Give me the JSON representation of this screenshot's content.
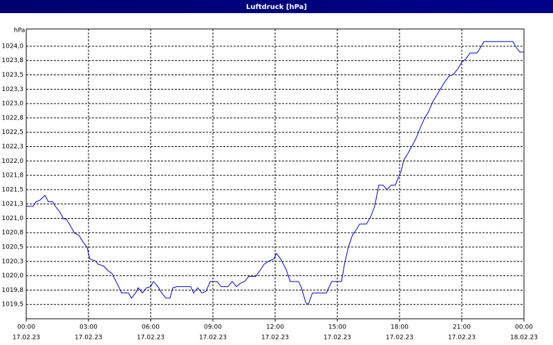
{
  "chart_data": {
    "type": "line",
    "title": "Luftdruck [hPa]",
    "y_label": "hPa",
    "grid": true,
    "x": [
      0,
      0.33,
      0.47,
      0.67,
      0.9,
      1.07,
      1.27,
      1.4,
      1.6,
      1.8,
      1.93,
      2.13,
      2.33,
      2.53,
      2.73,
      2.93,
      3.07,
      3.33,
      3.47,
      3.73,
      3.93,
      4.13,
      4.33,
      4.6,
      4.93,
      5.07,
      5.27,
      5.4,
      5.6,
      5.8,
      6,
      6.13,
      6.33,
      6.53,
      6.73,
      6.93,
      7.07,
      7.27,
      7.47,
      7.73,
      7.93,
      8.07,
      8.27,
      8.47,
      8.67,
      8.87,
      9.2,
      9.4,
      9.73,
      9.93,
      10.13,
      10.33,
      10.53,
      10.73,
      11.07,
      11.27,
      11.47,
      11.73,
      11.93,
      12.07,
      12.27,
      12.53,
      12.73,
      13.13,
      13.27,
      13.47,
      13.6,
      13.8,
      14.13,
      14.47,
      14.73,
      14.93,
      15.2,
      15.33,
      15.53,
      15.73,
      15.93,
      16.07,
      16.4,
      16.6,
      16.8,
      17,
      17.2,
      17.4,
      17.6,
      17.8,
      17.93,
      18.07,
      18.2,
      18.4,
      18.6,
      18.8,
      19,
      19.2,
      19.4,
      19.6,
      19.8,
      20,
      20.2,
      20.4,
      20.6,
      20.8,
      21,
      21.2,
      21.4,
      21.73,
      21.93,
      22.07,
      23.47,
      23.6,
      23.8,
      24
    ],
    "series": [
      {
        "color": "#0000c0",
        "values": [
          1021.21,
          1021.21,
          1021.29,
          1021.32,
          1021.4,
          1021.29,
          1021.29,
          1021.21,
          1021.12,
          1020.99,
          1020.99,
          1020.87,
          1020.74,
          1020.71,
          1020.59,
          1020.5,
          1020.29,
          1020.26,
          1020.2,
          1020.17,
          1020.09,
          1020.04,
          1019.9,
          1019.7,
          1019.7,
          1019.61,
          1019.7,
          1019.79,
          1019.7,
          1019.79,
          1019.81,
          1019.9,
          1019.82,
          1019.7,
          1019.61,
          1019.61,
          1019.79,
          1019.81,
          1019.81,
          1019.81,
          1019.81,
          1019.7,
          1019.79,
          1019.7,
          1019.73,
          1019.9,
          1019.9,
          1019.81,
          1019.81,
          1019.9,
          1019.81,
          1019.87,
          1019.9,
          1019.99,
          1019.99,
          1020.09,
          1020.2,
          1020.26,
          1020.29,
          1020.39,
          1020.29,
          1020.11,
          1019.9,
          1019.9,
          1019.79,
          1019.54,
          1019.5,
          1019.7,
          1019.7,
          1019.7,
          1019.9,
          1019.9,
          1019.9,
          1020.17,
          1020.5,
          1020.71,
          1020.81,
          1020.9,
          1020.9,
          1021.02,
          1021.21,
          1021.58,
          1021.58,
          1021.5,
          1021.58,
          1021.58,
          1021.7,
          1021.82,
          1022.01,
          1022.13,
          1022.26,
          1022.4,
          1022.58,
          1022.74,
          1022.86,
          1023.03,
          1023.15,
          1023.27,
          1023.39,
          1023.48,
          1023.51,
          1023.6,
          1023.72,
          1023.78,
          1023.88,
          1023.88,
          1023.99,
          1024.08,
          1024.08,
          1023.99,
          1023.9,
          1023.9
        ]
      }
    ],
    "xlim": [
      0,
      24
    ],
    "xticks": [
      {
        "value": 0,
        "label": "00:00",
        "date": "17.02.23"
      },
      {
        "value": 3,
        "label": "03:00",
        "date": "17.02.23"
      },
      {
        "value": 6,
        "label": "06:00",
        "date": "17.02.23"
      },
      {
        "value": 9,
        "label": "09:00",
        "date": "17.02.23"
      },
      {
        "value": 12,
        "label": "12:00",
        "date": "17.02.23"
      },
      {
        "value": 15,
        "label": "15:00",
        "date": "17.02.23"
      },
      {
        "value": 18,
        "label": "18:00",
        "date": "17.02.23"
      },
      {
        "value": 21,
        "label": "21:00",
        "date": "17.02.23"
      },
      {
        "value": 24,
        "label": "00:00",
        "date": "18.02.23"
      }
    ],
    "ylim": [
      1019.25,
      1024.3
    ],
    "yticks": [
      {
        "value": 1024,
        "label": "1024,0"
      },
      {
        "value": 1023.75,
        "label": "1023,8"
      },
      {
        "value": 1023.5,
        "label": "1023,5"
      },
      {
        "value": 1023.25,
        "label": "1023,3"
      },
      {
        "value": 1023,
        "label": "1023,0"
      },
      {
        "value": 1022.75,
        "label": "1022,8"
      },
      {
        "value": 1022.5,
        "label": "1022,5"
      },
      {
        "value": 1022.25,
        "label": "1022,3"
      },
      {
        "value": 1022,
        "label": "1022,0"
      },
      {
        "value": 1021.75,
        "label": "1021,8"
      },
      {
        "value": 1021.5,
        "label": "1021,5"
      },
      {
        "value": 1021.25,
        "label": "1021,3"
      },
      {
        "value": 1021,
        "label": "1021,0"
      },
      {
        "value": 1020.75,
        "label": "1020,8"
      },
      {
        "value": 1020.5,
        "label": "1020,5"
      },
      {
        "value": 1020.25,
        "label": "1020,3"
      },
      {
        "value": 1020,
        "label": "1020,0"
      },
      {
        "value": 1019.75,
        "label": "1019,8"
      },
      {
        "value": 1019.5,
        "label": "1019,5"
      }
    ]
  }
}
